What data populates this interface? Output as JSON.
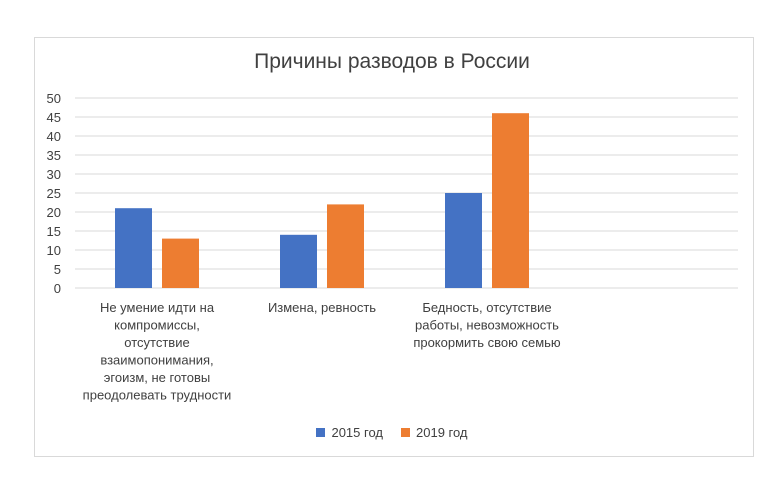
{
  "chart_data": {
    "type": "bar",
    "title": "Причины разводов в России",
    "categories": [
      "Не умение идти на компромиссы, отсутствие взаимопонимания, эгоизм, не готовы преодолевать трудности",
      "Измена, ревность",
      "Бедность, отсутствие работы, невозможность прокормить свою семью"
    ],
    "category_lines": [
      [
        "Не умение идти на",
        "компромиссы,",
        "отсутствие",
        "взаимопонимания,",
        "эгоизм, не готовы",
        "преодолевать трудности"
      ],
      [
        "Измена, ревность"
      ],
      [
        "Бедность, отсутствие",
        "работы, невозможность",
        "прокормить свою семью"
      ]
    ],
    "series": [
      {
        "name": "2015 год",
        "color": "#4472c4",
        "values": [
          21,
          14,
          25
        ]
      },
      {
        "name": "2019 год",
        "color": "#ed7d31",
        "values": [
          13,
          22,
          46
        ]
      }
    ],
    "ylim": [
      0,
      50
    ],
    "yticks": [
      0,
      5,
      10,
      15,
      20,
      25,
      30,
      35,
      40,
      45,
      50
    ],
    "grid": true,
    "legend_position": "bottom"
  }
}
